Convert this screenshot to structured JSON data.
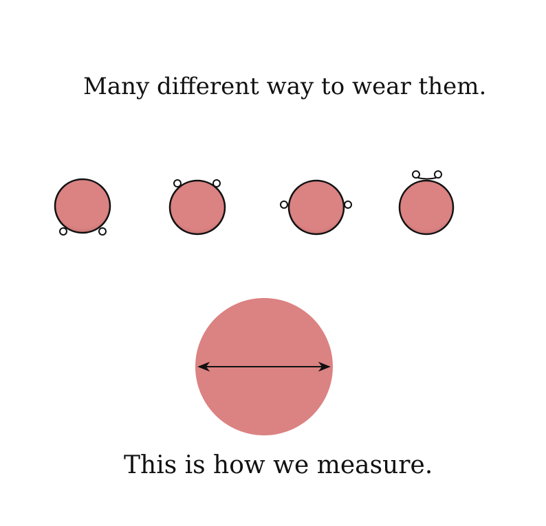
{
  "title": "Many different way to wear them.",
  "caption": "This is how we measure.",
  "colors": {
    "fill": "#db8282",
    "outline": "#111111"
  },
  "figures": [
    {
      "name": "loops-bottom"
    },
    {
      "name": "loops-top-sides"
    },
    {
      "name": "loops-middle-sides"
    },
    {
      "name": "loops-top"
    }
  ]
}
